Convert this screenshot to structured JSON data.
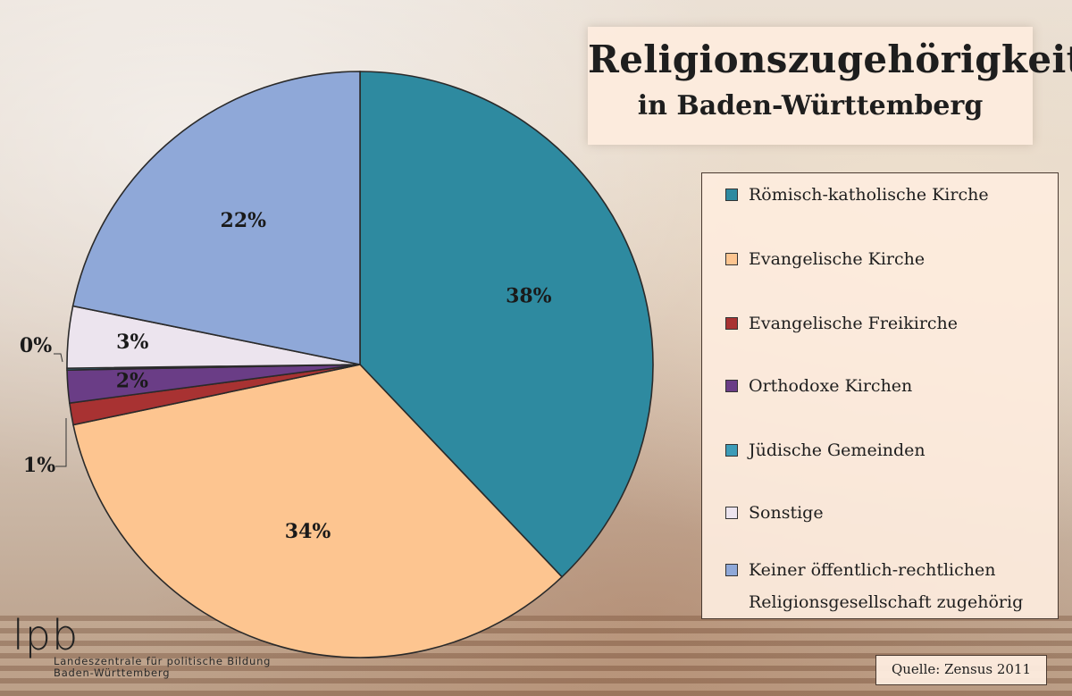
{
  "title": "Religionszugehörigkeit",
  "subtitle": "in Baden-Württemberg",
  "source": "Quelle:  Zensus 2011",
  "logo": {
    "mark": "lpb",
    "line1": "Landeszentrale für politische Bildung",
    "line2": "Baden-Württemberg"
  },
  "chart_data": {
    "type": "pie",
    "title": "Religionszugehörigkeit",
    "subtitle": "in Baden-Württemberg",
    "legend_position": "right",
    "slices": [
      {
        "name": "Römisch-katholische Kirche",
        "value": 37.9,
        "label": "38%",
        "color": "#2e8aa0"
      },
      {
        "name": "Evangelische Kirche",
        "value": 33.8,
        "label": "34%",
        "color": "#fdc590"
      },
      {
        "name": "Evangelische Freikirche",
        "value": 1.2,
        "label": "1%",
        "color": "#a83232"
      },
      {
        "name": "Orthodoxe Kirchen",
        "value": 1.8,
        "label": "2%",
        "color": "#6a3d86"
      },
      {
        "name": "Jüdische Gemeinden",
        "value": 0.1,
        "label": "0%",
        "color": "#3c9cb8"
      },
      {
        "name": "Sonstige",
        "value": 3.4,
        "label": "3%",
        "color": "#ece4ee"
      },
      {
        "name": "Keiner öffentlich-rechtlichen Religionsgesellschaft zugehörig",
        "value": 21.8,
        "label": "22%",
        "color": "#8fa8d8"
      }
    ],
    "legend_lines": [
      [
        "Römisch-katholische Kirche"
      ],
      [
        "Evangelische Kirche"
      ],
      [
        "Evangelische Freikirche"
      ],
      [
        "Orthodoxe Kirchen"
      ],
      [
        "Jüdische Gemeinden"
      ],
      [
        "Sonstige"
      ],
      [
        "Keiner öffentlich-rechtlichen",
        "Religionsgesellschaft zugehörig"
      ]
    ]
  }
}
